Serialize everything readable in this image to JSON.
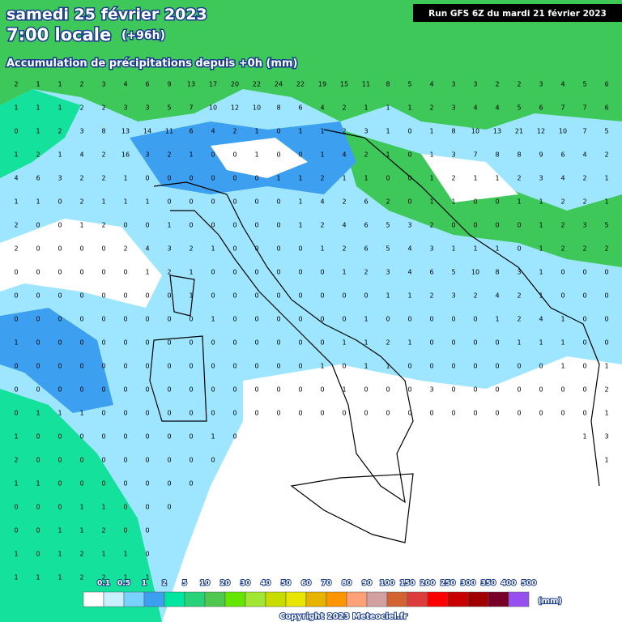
{
  "header": {
    "date": "samedi 25 février 2023",
    "time": "7:00 locale",
    "lead": "(+96h)",
    "subtitle": "Accumulation de précipitations depuis +0h (mm)",
    "run": "Run GFS 6Z du mardi 21 février 2023"
  },
  "grid": {
    "rows": [
      [
        2,
        1,
        1,
        2,
        3,
        4,
        6,
        9,
        13,
        17,
        20,
        22,
        24,
        22,
        19,
        15,
        11,
        8,
        5,
        4,
        3,
        3,
        2,
        2,
        3,
        4,
        5,
        6
      ],
      [
        1,
        1,
        1,
        2,
        2,
        3,
        3,
        5,
        7,
        10,
        12,
        10,
        8,
        6,
        4,
        2,
        1,
        1,
        1,
        2,
        3,
        4,
        4,
        5,
        6,
        7,
        7,
        6
      ],
      [
        0,
        1,
        2,
        3,
        8,
        13,
        14,
        11,
        6,
        4,
        2,
        1,
        0,
        1,
        1,
        2,
        3,
        1,
        0,
        1,
        8,
        10,
        13,
        21,
        12,
        10,
        7,
        5
      ],
      [
        1,
        2,
        1,
        4,
        2,
        16,
        3,
        2,
        1,
        0,
        0,
        1,
        0,
        0,
        1,
        4,
        2,
        1,
        0,
        1,
        3,
        7,
        8,
        8,
        9,
        6,
        4,
        2
      ],
      [
        4,
        6,
        3,
        2,
        2,
        1,
        0,
        0,
        0,
        0,
        0,
        0,
        1,
        1,
        2,
        1,
        1,
        0,
        0,
        1,
        2,
        1,
        1,
        2,
        3,
        4,
        2,
        1
      ],
      [
        1,
        1,
        0,
        2,
        1,
        1,
        1,
        0,
        0,
        0,
        0,
        0,
        0,
        1,
        4,
        2,
        6,
        2,
        0,
        1,
        1,
        0,
        0,
        1,
        1,
        2,
        2,
        1
      ],
      [
        2,
        0,
        0,
        1,
        2,
        0,
        0,
        1,
        0,
        0,
        0,
        0,
        0,
        1,
        2,
        4,
        6,
        5,
        3,
        2,
        0,
        0,
        0,
        0,
        1,
        2,
        3,
        5
      ],
      [
        2,
        0,
        0,
        0,
        0,
        2,
        4,
        3,
        2,
        1,
        0,
        0,
        0,
        0,
        1,
        2,
        6,
        5,
        4,
        3,
        1,
        1,
        1,
        0,
        1,
        2,
        2,
        2
      ],
      [
        0,
        0,
        0,
        0,
        0,
        0,
        1,
        2,
        1,
        0,
        0,
        0,
        0,
        0,
        0,
        1,
        2,
        3,
        4,
        6,
        5,
        10,
        8,
        3,
        1,
        0,
        0,
        0
      ],
      [
        0,
        0,
        0,
        0,
        0,
        0,
        0,
        0,
        1,
        0,
        0,
        0,
        0,
        0,
        0,
        0,
        0,
        1,
        1,
        2,
        3,
        2,
        4,
        2,
        1,
        0,
        0,
        0
      ],
      [
        0,
        0,
        0,
        0,
        0,
        0,
        0,
        0,
        0,
        1,
        0,
        0,
        0,
        0,
        0,
        0,
        1,
        0,
        0,
        0,
        0,
        0,
        1,
        2,
        4,
        1,
        0,
        0
      ],
      [
        1,
        0,
        0,
        0,
        0,
        0,
        0,
        0,
        0,
        0,
        0,
        0,
        0,
        0,
        0,
        1,
        1,
        2,
        1,
        0,
        0,
        0,
        0,
        1,
        1,
        1,
        0,
        0
      ],
      [
        0,
        0,
        0,
        0,
        0,
        0,
        0,
        0,
        0,
        0,
        0,
        0,
        0,
        0,
        1,
        0,
        1,
        1,
        0,
        0,
        0,
        0,
        0,
        0,
        0,
        1,
        0,
        1
      ],
      [
        0,
        0,
        0,
        0,
        0,
        0,
        0,
        0,
        0,
        0,
        0,
        0,
        0,
        0,
        0,
        1,
        0,
        0,
        0,
        3,
        0,
        0,
        0,
        0,
        0,
        0,
        0,
        2
      ],
      [
        0,
        1,
        1,
        1,
        0,
        0,
        0,
        0,
        0,
        0,
        0,
        0,
        0,
        0,
        0,
        0,
        0,
        0,
        0,
        0,
        0,
        0,
        0,
        0,
        0,
        0,
        0,
        1
      ],
      [
        1,
        0,
        0,
        0,
        0,
        0,
        0,
        0,
        0,
        1,
        0,
        null,
        null,
        null,
        null,
        null,
        null,
        null,
        null,
        null,
        null,
        null,
        null,
        null,
        null,
        null,
        1,
        3
      ],
      [
        2,
        0,
        0,
        0,
        0,
        0,
        0,
        0,
        0,
        0,
        null,
        null,
        null,
        null,
        null,
        null,
        null,
        null,
        null,
        null,
        null,
        null,
        null,
        null,
        null,
        null,
        null,
        1
      ],
      [
        1,
        1,
        0,
        0,
        0,
        0,
        0,
        0,
        0,
        null,
        null,
        null,
        null,
        null,
        null,
        null,
        null,
        null,
        null,
        null,
        null,
        null,
        null,
        null,
        null,
        null,
        null,
        null
      ],
      [
        0,
        0,
        0,
        1,
        1,
        0,
        0,
        0,
        null,
        null,
        null,
        null,
        null,
        null,
        null,
        null,
        null,
        null,
        null,
        null,
        null,
        null,
        null,
        null,
        null,
        null,
        null,
        null
      ],
      [
        0,
        0,
        1,
        1,
        2,
        0,
        0,
        null,
        null,
        null,
        null,
        null,
        null,
        null,
        null,
        null,
        null,
        null,
        null,
        null,
        null,
        null,
        null,
        null,
        null,
        null,
        null,
        null
      ],
      [
        1,
        0,
        1,
        2,
        1,
        1,
        0,
        null,
        null,
        null,
        null,
        null,
        null,
        null,
        null,
        null,
        null,
        null,
        null,
        null,
        null,
        null,
        null,
        null,
        null,
        null,
        null,
        null
      ],
      [
        1,
        1,
        1,
        2,
        2,
        1,
        1,
        null,
        null,
        null,
        null,
        null,
        null,
        null,
        null,
        null,
        null,
        null,
        null,
        null,
        null,
        null,
        null,
        null,
        null,
        null,
        null,
        null
      ]
    ]
  },
  "legend": {
    "labels": [
      "0.1",
      "0.5",
      "1",
      "2",
      "5",
      "10",
      "20",
      "30",
      "40",
      "50",
      "60",
      "70",
      "80",
      "90",
      "100",
      "150",
      "200",
      "250",
      "300",
      "350",
      "400",
      "500"
    ],
    "colors": [
      "#ffffff",
      "#c8f0ff",
      "#78d2ff",
      "#3c9ff0",
      "#00e6a0",
      "#28d278",
      "#50c850",
      "#64e600",
      "#a0e632",
      "#c8dc00",
      "#e6e600",
      "#e6b400",
      "#ff9600",
      "#ffa078",
      "#d2a0a0",
      "#d26432",
      "#dc3c3c",
      "#ff0000",
      "#c80000",
      "#a00000",
      "#780028",
      "#9650f0"
    ],
    "unit": "(mm)"
  },
  "footer": {
    "copyright": "Copyright 2023 Meteociel.fr"
  }
}
